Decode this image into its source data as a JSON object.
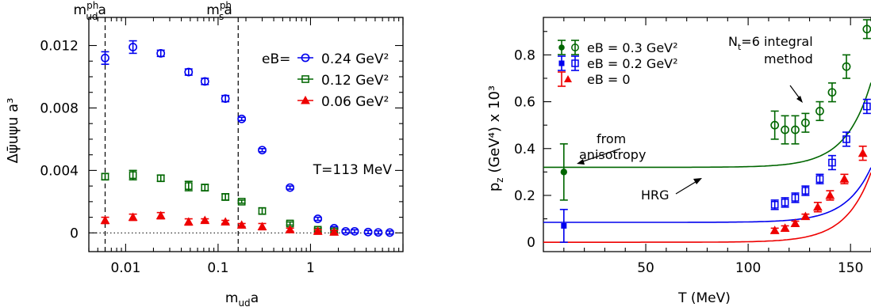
{
  "chart_data": [
    {
      "type": "scatter",
      "xscale": "log",
      "xlabel": "m",
      "xlabel_sub": "ud",
      "xlabel_tail": "a",
      "ylabel": "Δψ̄uψu a³",
      "xlim": [
        0.004,
        10
      ],
      "ylim": [
        -0.0012,
        0.0138
      ],
      "yticks": [
        0,
        0.004,
        0.008,
        0.012
      ],
      "ytick_labels": [
        "0",
        "0.004",
        "0.008",
        "0.012"
      ],
      "xticks": [
        0.01,
        0.1,
        1
      ],
      "xtick_labels": [
        "0.01",
        "0.1",
        "1"
      ],
      "zero_line": "dotted",
      "vlines": [
        {
          "x": 0.006,
          "label": "m",
          "sub": "ud",
          "sup": "ph",
          "tail": "a"
        },
        {
          "x": 0.165,
          "label": "m",
          "sub": "s",
          "sup": "ph",
          "tail": "a"
        }
      ],
      "legend_prefix": "eB=",
      "legend_position": "top-right",
      "annotation": "T=113 MeV",
      "series": [
        {
          "name": "0.24 GeV²",
          "color": "#0000ee",
          "marker": "circle-open",
          "points": [
            [
              0.006,
              0.0112,
              0.0004
            ],
            [
              0.012,
              0.0119,
              0.0004
            ],
            [
              0.024,
              0.0115,
              0.0002
            ],
            [
              0.048,
              0.0103,
              0.0002
            ],
            [
              0.072,
              0.0097,
              0.0002
            ],
            [
              0.12,
              0.0086,
              0.0002
            ],
            [
              0.18,
              0.0073,
              0.0001
            ],
            [
              0.3,
              0.0053,
              0.0001
            ],
            [
              0.6,
              0.0029,
              0.0001
            ],
            [
              1.2,
              0.0009,
              0.0001
            ],
            [
              1.8,
              0.0003,
              0.0001
            ],
            [
              2.4,
              0.0001,
              0.0001
            ],
            [
              3.0,
              0.0001,
              0.0001
            ],
            [
              4.2,
              5e-05,
              0.0001
            ],
            [
              5.4,
              3e-05,
              0.0001
            ],
            [
              7.2,
              2e-05,
              0.0001
            ]
          ]
        },
        {
          "name": "0.12 GeV²",
          "color": "#006600",
          "marker": "square-open",
          "points": [
            [
              0.006,
              0.0036,
              0.0002
            ],
            [
              0.012,
              0.0037,
              0.0003
            ],
            [
              0.024,
              0.0035,
              0.0002
            ],
            [
              0.048,
              0.003,
              0.0003
            ],
            [
              0.072,
              0.0029,
              0.0002
            ],
            [
              0.12,
              0.0023,
              0.0002
            ],
            [
              0.18,
              0.002,
              0.0001
            ],
            [
              0.3,
              0.0014,
              0.0002
            ],
            [
              0.6,
              0.0006,
              0.0001
            ],
            [
              1.2,
              0.0002,
              0.0001
            ],
            [
              1.8,
              0.0001,
              0.0001
            ]
          ]
        },
        {
          "name": "0.06 GeV²",
          "color": "#ee0000",
          "marker": "triangle-filled",
          "points": [
            [
              0.006,
              0.0008,
              0.0002
            ],
            [
              0.012,
              0.001,
              0.0002
            ],
            [
              0.024,
              0.0011,
              0.0002
            ],
            [
              0.048,
              0.0007,
              0.0002
            ],
            [
              0.072,
              0.0008,
              0.0001
            ],
            [
              0.12,
              0.0007,
              0.0001
            ],
            [
              0.18,
              0.0005,
              0.0001
            ],
            [
              0.3,
              0.0004,
              0.0002
            ],
            [
              0.6,
              0.0002,
              0.0001
            ],
            [
              1.2,
              0.0001,
              0.0001
            ],
            [
              1.8,
              5e-05,
              0.0001
            ]
          ]
        }
      ]
    },
    {
      "type": "scatter",
      "xlabel": "T (MeV)",
      "ylabel": "p",
      "ylabel_sub": "z",
      "ylabel_tail": " (GeV⁴) x 10³",
      "xlim": [
        0,
        160
      ],
      "ylim": [
        -0.04,
        0.96
      ],
      "xticks": [
        50,
        100,
        150
      ],
      "xtick_labels": [
        "50",
        "100",
        "150"
      ],
      "yticks": [
        0,
        0.2,
        0.4,
        0.6,
        0.8
      ],
      "ytick_labels": [
        "0",
        "0.2",
        "0.4",
        "0.6",
        "0.8"
      ],
      "legend_position": "top-left",
      "annotations": {
        "integral_1": "N",
        "integral_1_sub": "t",
        "integral_1_tail": "=6 integral",
        "integral_2": "method",
        "anisotropy_1": "from",
        "anisotropy_2": "anisotropy",
        "hrg": "HRG"
      },
      "series": [
        {
          "name": "eB = 0.3 GeV²",
          "color": "#006600",
          "marker": "circle-open",
          "legend_marker": "circle-filled-open",
          "points": [
            [
              113,
              0.5,
              0.06
            ],
            [
              118,
              0.48,
              0.06
            ],
            [
              123,
              0.48,
              0.06
            ],
            [
              128,
              0.51,
              0.04
            ],
            [
              135,
              0.56,
              0.04
            ],
            [
              141,
              0.64,
              0.04
            ],
            [
              148,
              0.75,
              0.05
            ],
            [
              158,
              0.91,
              0.04
            ]
          ],
          "anisotropy_point": [
            10,
            0.3,
            0.12
          ],
          "hrg_curve": {
            "base": 0.32,
            "amp": 8.5e-07,
            "rate": 0.081
          }
        },
        {
          "name": "eB = 0.2 GeV²",
          "color": "#0000ee",
          "marker": "square-open",
          "legend_marker": "square-filled-open",
          "points": [
            [
              113,
              0.16,
              0.02
            ],
            [
              118,
              0.17,
              0.02
            ],
            [
              123,
              0.19,
              0.02
            ],
            [
              128,
              0.22,
              0.02
            ],
            [
              135,
              0.27,
              0.02
            ],
            [
              141,
              0.34,
              0.03
            ],
            [
              148,
              0.44,
              0.03
            ],
            [
              158,
              0.58,
              0.03
            ]
          ],
          "anisotropy_point": [
            10,
            0.07,
            0.07
          ],
          "hrg_curve": {
            "base": 0.085,
            "amp": 5.5e-07,
            "rate": 0.081
          }
        },
        {
          "name": "eB = 0",
          "color": "#ee0000",
          "marker": "triangle-filled",
          "points": [
            [
              113,
              0.05,
              0.01
            ],
            [
              118,
              0.06,
              0.01
            ],
            [
              123,
              0.08,
              0.01
            ],
            [
              128,
              0.11,
              0.01
            ],
            [
              134,
              0.15,
              0.02
            ],
            [
              140,
              0.2,
              0.02
            ],
            [
              147,
              0.27,
              0.02
            ],
            [
              156,
              0.38,
              0.03
            ]
          ],
          "hrg_curve": {
            "base": 0.0,
            "amp": 7e-07,
            "rate": 0.081
          }
        }
      ]
    }
  ]
}
